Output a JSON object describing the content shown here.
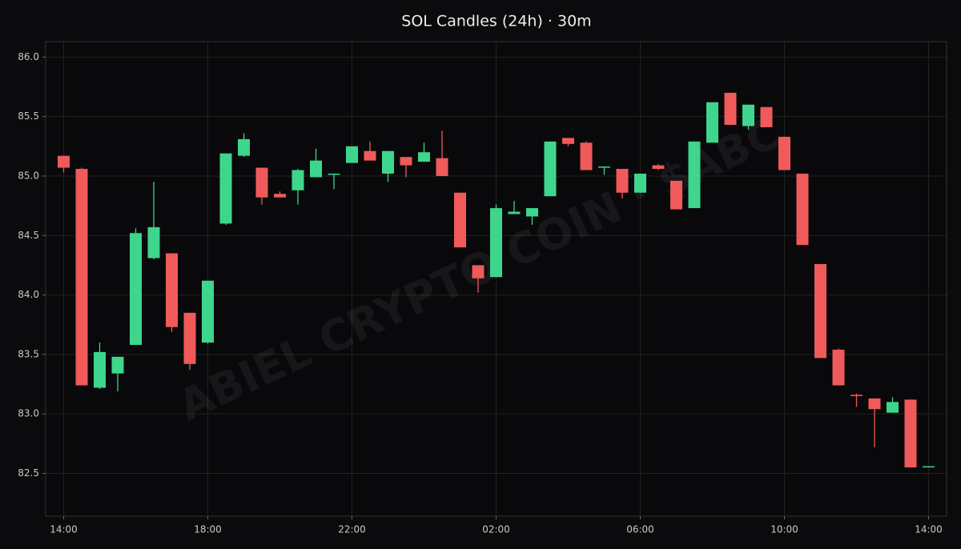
{
  "chart_data": {
    "type": "candlestick",
    "title": "SOL Candles (24h)  ·  30m",
    "watermark": "ABIEL CRYPTO COIN · $ABC",
    "x": [
      "14:00",
      "14:30",
      "15:00",
      "15:30",
      "16:00",
      "16:30",
      "17:00",
      "17:30",
      "18:00",
      "18:30",
      "19:00",
      "19:30",
      "20:00",
      "20:30",
      "21:00",
      "21:30",
      "22:00",
      "22:30",
      "23:00",
      "23:30",
      "00:00",
      "00:30",
      "01:00",
      "01:30",
      "02:00",
      "02:30",
      "03:00",
      "03:30",
      "04:00",
      "04:30",
      "05:00",
      "05:30",
      "06:00",
      "06:30",
      "07:00",
      "07:30",
      "08:00",
      "08:30",
      "09:00",
      "09:30",
      "10:00",
      "10:30",
      "11:00",
      "11:30",
      "12:00",
      "12:30",
      "13:00",
      "13:30",
      "14:00"
    ],
    "open": [
      85.17,
      85.06,
      83.22,
      83.34,
      83.58,
      84.31,
      84.35,
      83.85,
      83.6,
      84.6,
      85.17,
      85.07,
      84.85,
      84.88,
      84.99,
      85.01,
      85.11,
      85.21,
      85.02,
      85.16,
      85.12,
      85.15,
      84.86,
      84.25,
      84.15,
      84.68,
      84.66,
      84.83,
      85.32,
      85.28,
      85.07,
      85.06,
      84.86,
      85.09,
      84.96,
      84.73,
      85.28,
      85.7,
      85.42,
      85.58,
      85.33,
      85.02,
      84.26,
      83.54,
      83.16,
      83.13,
      83.01,
      83.12,
      82.55
    ],
    "high": [
      85.17,
      85.07,
      83.6,
      83.48,
      84.56,
      84.95,
      84.35,
      83.85,
      84.12,
      85.19,
      85.36,
      85.07,
      84.87,
      85.06,
      85.23,
      85.02,
      85.25,
      85.29,
      85.21,
      85.16,
      85.28,
      85.38,
      84.86,
      84.25,
      84.76,
      84.79,
      84.73,
      85.29,
      85.32,
      85.29,
      85.08,
      85.06,
      85.02,
      85.1,
      84.96,
      85.29,
      85.62,
      85.7,
      85.6,
      85.58,
      85.33,
      85.02,
      84.26,
      83.55,
      83.17,
      83.13,
      83.14,
      83.12,
      82.56
    ],
    "low": [
      85.03,
      83.24,
      83.21,
      83.19,
      83.58,
      84.3,
      83.69,
      83.37,
      83.59,
      84.59,
      85.16,
      84.76,
      84.82,
      84.76,
      84.99,
      84.89,
      85.11,
      85.13,
      84.95,
      84.99,
      85.12,
      85.0,
      84.4,
      84.02,
      84.15,
      84.68,
      84.59,
      84.83,
      85.25,
      85.05,
      85.01,
      84.81,
      84.86,
      85.05,
      84.72,
      84.73,
      85.28,
      85.43,
      85.39,
      85.41,
      85.05,
      84.42,
      83.47,
      83.24,
      83.06,
      82.72,
      83.01,
      82.55,
      82.55
    ],
    "close": [
      85.07,
      83.24,
      83.52,
      83.48,
      84.52,
      84.57,
      83.73,
      83.42,
      84.12,
      85.19,
      85.31,
      84.82,
      84.82,
      85.05,
      85.13,
      85.02,
      85.25,
      85.13,
      85.21,
      85.09,
      85.2,
      85.0,
      84.4,
      84.14,
      84.73,
      84.7,
      84.73,
      85.29,
      85.27,
      85.05,
      85.08,
      84.86,
      85.02,
      85.06,
      84.72,
      85.29,
      85.62,
      85.43,
      85.6,
      85.41,
      85.05,
      84.42,
      83.47,
      83.24,
      83.15,
      83.04,
      83.1,
      82.55,
      82.56
    ],
    "up_color": "#3dd68c",
    "down_color": "#f05a5a",
    "ylim": [
      82.14,
      86.13
    ],
    "yticks": [
      {
        "value": 82.5,
        "label": "82.5"
      },
      {
        "value": 83,
        "label": "83.0"
      },
      83.5,
      {
        "value": 84,
        "label": "84.0"
      },
      84.5,
      {
        "value": 85,
        "label": "85.0"
      },
      85.5,
      {
        "value": 86,
        "label": "86.0"
      }
    ],
    "xticks": [
      "14:00",
      "18:00",
      "22:00",
      "02:00",
      "06:00",
      "10:00",
      "14:00"
    ],
    "grid": true
  }
}
